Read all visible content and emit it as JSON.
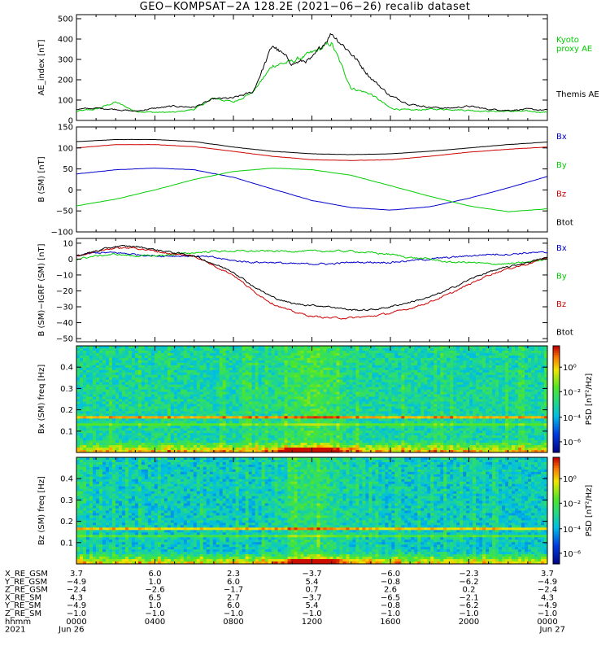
{
  "title": "GEO−KOMPSAT−2A 128.2E (2021−06−26) recalib dataset",
  "chart_data": [
    {
      "type": "line",
      "ylabel": "AE_index [nT]",
      "ylim": [
        0,
        520
      ],
      "yticks": [
        0,
        100,
        200,
        300,
        400,
        500
      ],
      "x": [
        "0000",
        "0100",
        "0200",
        "0300",
        "0400",
        "0500",
        "0600",
        "0700",
        "0800",
        "0900",
        "1000",
        "1100",
        "1200",
        "1300",
        "1400",
        "1500",
        "1600",
        "1700",
        "1800",
        "1900",
        "2000",
        "2100",
        "2200",
        "2300",
        "2400"
      ],
      "series": [
        {
          "name": "Kyoto proxy AE",
          "color": "#00cc00",
          "values": [
            45,
            55,
            90,
            45,
            40,
            40,
            55,
            110,
            90,
            140,
            270,
            290,
            330,
            380,
            160,
            130,
            60,
            50,
            55,
            55,
            50,
            45,
            45,
            45,
            40
          ]
        },
        {
          "name": "Themis AE",
          "color": "#000000",
          "values": [
            55,
            60,
            55,
            45,
            60,
            70,
            65,
            105,
            110,
            140,
            370,
            280,
            300,
            430,
            330,
            210,
            120,
            80,
            65,
            60,
            70,
            55,
            50,
            55,
            50
          ]
        }
      ]
    },
    {
      "type": "line",
      "ylabel": "B (SM) [nT]",
      "ylim": [
        -100,
        150
      ],
      "yticks": [
        -100,
        -50,
        0,
        50,
        100,
        150
      ],
      "x": [
        "0000",
        "0200",
        "0400",
        "0600",
        "0800",
        "1000",
        "1200",
        "1400",
        "1600",
        "1800",
        "2000",
        "2200",
        "2400"
      ],
      "series": [
        {
          "name": "Bx",
          "color": "#0000cc",
          "values": [
            38,
            48,
            52,
            48,
            30,
            2,
            -25,
            -42,
            -48,
            -40,
            -20,
            5,
            32
          ]
        },
        {
          "name": "By",
          "color": "#00cc00",
          "values": [
            -38,
            -22,
            0,
            25,
            44,
            52,
            48,
            35,
            10,
            -15,
            -38,
            -52,
            -45
          ]
        },
        {
          "name": "Bz",
          "color": "#cc0000",
          "values": [
            100,
            108,
            108,
            103,
            92,
            80,
            72,
            70,
            72,
            80,
            90,
            97,
            102
          ]
        },
        {
          "name": "Btot",
          "color": "#000000",
          "values": [
            115,
            120,
            120,
            115,
            102,
            92,
            86,
            84,
            86,
            92,
            100,
            108,
            114
          ]
        }
      ]
    },
    {
      "type": "line",
      "ylabel": "B (SM)−IGRF (SM) [nT]",
      "ylim": [
        -52,
        13
      ],
      "yticks": [
        -50,
        -40,
        -30,
        -20,
        -10,
        0,
        10
      ],
      "x": [
        "0000",
        "0100",
        "0200",
        "0300",
        "0400",
        "0500",
        "0600",
        "0700",
        "0800",
        "0900",
        "1000",
        "1100",
        "1200",
        "1300",
        "1400",
        "1500",
        "1600",
        "1700",
        "1800",
        "1900",
        "2000",
        "2100",
        "2200",
        "2300",
        "2400"
      ],
      "series": [
        {
          "name": "Bx",
          "color": "#0000cc",
          "values": [
            2,
            4,
            4,
            3,
            2,
            2,
            2,
            1,
            -1,
            -2,
            -2,
            -3,
            -3,
            -3,
            -2,
            -2,
            -2,
            -1,
            0,
            1,
            2,
            3,
            3,
            4,
            4
          ]
        },
        {
          "name": "By",
          "color": "#00cc00",
          "values": [
            0,
            2,
            3,
            2,
            2,
            3,
            4,
            5,
            5,
            5,
            5,
            5,
            5,
            5,
            5,
            4,
            3,
            1,
            0,
            -2,
            -2,
            -3,
            -3,
            -2,
            0
          ]
        },
        {
          "name": "Bz",
          "color": "#cc0000",
          "values": [
            2,
            5,
            7,
            7,
            5,
            3,
            2,
            -4,
            -10,
            -20,
            -28,
            -33,
            -36,
            -37,
            -37,
            -36,
            -34,
            -31,
            -27,
            -22,
            -16,
            -10,
            -6,
            -3,
            1
          ]
        },
        {
          "name": "Btot",
          "color": "#000000",
          "values": [
            2,
            5,
            8,
            8,
            6,
            4,
            2,
            -3,
            -8,
            -17,
            -24,
            -28,
            -29,
            -30,
            -32,
            -32,
            -30,
            -27,
            -24,
            -19,
            -13,
            -8,
            -5,
            -2,
            1
          ]
        }
      ]
    },
    {
      "type": "heatmap",
      "ylabel": "Bx (SM) freq [Hz]",
      "ylim": [
        0,
        0.5
      ],
      "yticks": [
        "0.1",
        "0.2",
        "0.3",
        "0.4"
      ],
      "colorbar_label": "PSD [nT²/Hz]",
      "colorbar_ticks": [
        "10⁰",
        "10⁻²",
        "10⁻⁴",
        "10⁻⁶"
      ]
    },
    {
      "type": "heatmap",
      "ylabel": "Bz (SM) freq [Hz]",
      "ylim": [
        0,
        0.5
      ],
      "yticks": [
        "0.1",
        "0.2",
        "0.3",
        "0.4"
      ],
      "colorbar_label": "PSD [nT²/Hz]",
      "colorbar_ticks": [
        "10⁰",
        "10⁻²",
        "10⁻⁴",
        "10⁻⁶"
      ]
    }
  ],
  "ephemeris": {
    "labels": [
      "X_RE_GSM",
      "Y_RE_GSM",
      "Z_RE_GSM",
      "X_RE_SM",
      "Y_RE_SM",
      "Z_RE_SM",
      "hhmm",
      "2021"
    ],
    "columns": [
      [
        "3.7",
        "−4.9",
        "−2.4",
        "4.3",
        "−4.9",
        "−1.0",
        "0000",
        "Jun 26"
      ],
      [
        "6.0",
        "1.0",
        "−2.6",
        "6.5",
        "1.0",
        "−1.0",
        "0400",
        ""
      ],
      [
        "2.3",
        "6.0",
        "−1.7",
        "2.7",
        "6.0",
        "−1.0",
        "0800",
        ""
      ],
      [
        "−3.7",
        "5.4",
        "0.7",
        "−3.7",
        "5.4",
        "−1.0",
        "1200",
        ""
      ],
      [
        "−6.0",
        "−0.8",
        "2.6",
        "−6.5",
        "−0.8",
        "−1.0",
        "1600",
        ""
      ],
      [
        "−2.3",
        "−6.2",
        "0.2",
        "−2.1",
        "−6.2",
        "−1.0",
        "2000",
        ""
      ],
      [
        "3.7",
        "−4.9",
        "−2.4",
        "4.3",
        "−4.9",
        "−1.0",
        "0000",
        "Jun 27"
      ]
    ]
  }
}
